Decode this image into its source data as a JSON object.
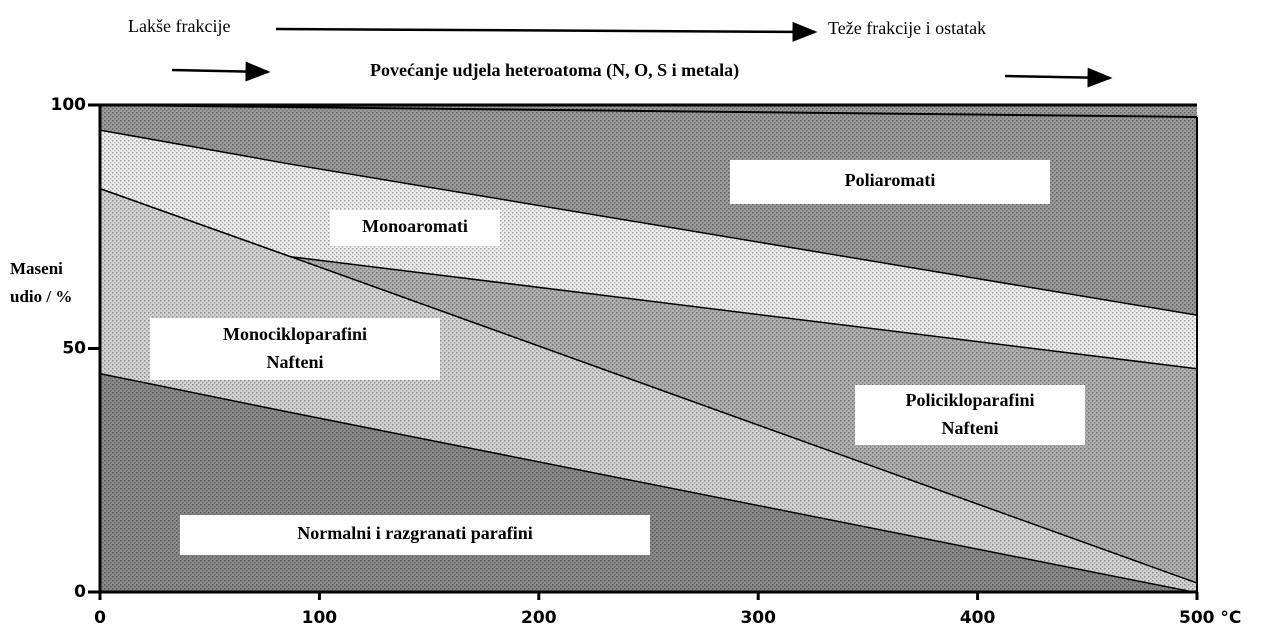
{
  "chart_data": {
    "type": "stacked_area",
    "annotations": {
      "left_arrow": "Lakše frakcije",
      "right_arrow": "Teže frakcije i ostatak",
      "heteroatoms": "Povećanje udjela heteroatoma (N, O, S i metala)"
    },
    "y_label": [
      "Maseni",
      "udio / %"
    ],
    "x": [
      0,
      87,
      500
    ],
    "series": [
      {
        "name": "Normalni i razgranati parafini",
        "color": "#8a8a8a",
        "values": [
          45,
          37,
          0
        ]
      },
      {
        "name": "Monocikloparafini",
        "subname": "Nafteni",
        "color": "#d4d4d4",
        "values": [
          38,
          32,
          2
        ]
      },
      {
        "name": "Policikloparafini",
        "subname": "Nafteni",
        "color": "#b0b0b0",
        "values": [
          0,
          0,
          44
        ]
      },
      {
        "name": "Monoaromati",
        "color": "#efefef",
        "values": [
          12,
          19,
          11
        ]
      },
      {
        "name": "Poliaromati",
        "color": "#9a9a9a",
        "values": [
          5,
          12,
          43
        ]
      }
    ],
    "xlim": [
      0,
      500
    ],
    "ylim": [
      0,
      100
    ],
    "xticks": [
      0,
      100,
      200,
      300,
      400,
      {
        "value": 500,
        "label": "500 °C"
      }
    ],
    "yticks": [
      0,
      50,
      100
    ]
  }
}
